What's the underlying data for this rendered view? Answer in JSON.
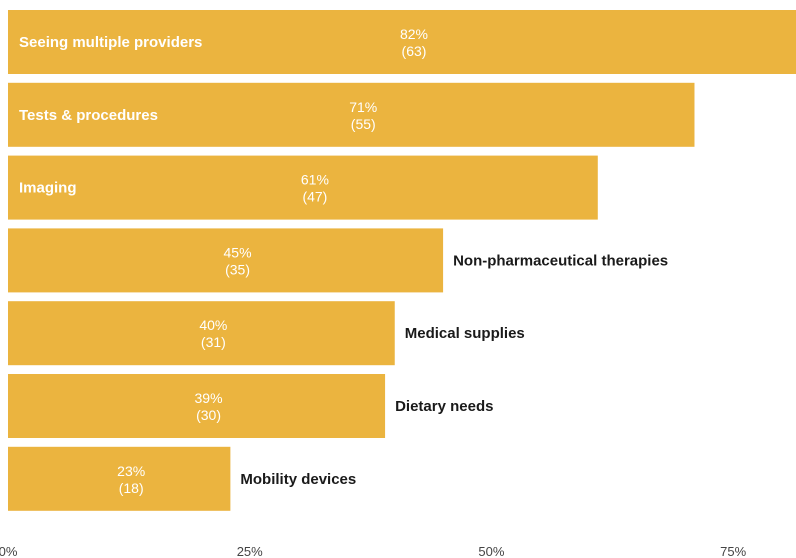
{
  "chart_data": {
    "type": "bar",
    "orientation": "horizontal",
    "categories": [
      "Seeing multiple providers",
      "Tests & procedures",
      "Imaging",
      "Non-pharmaceutical therapies",
      "Medical supplies",
      "Dietary needs",
      "Mobility devices"
    ],
    "values": [
      82,
      71,
      61,
      45,
      40,
      39,
      23
    ],
    "counts": [
      63,
      55,
      47,
      35,
      31,
      30,
      18
    ],
    "value_labels": [
      "82%",
      "71%",
      "61%",
      "45%",
      "40%",
      "39%",
      "23%"
    ],
    "count_labels": [
      "(63)",
      "(55)",
      "(47)",
      "(35)",
      "(31)",
      "(30)",
      "(18)"
    ],
    "x_ticks": [
      0,
      25,
      50,
      75
    ],
    "x_tick_labels": [
      "0%",
      "25%",
      "50%",
      "75%"
    ],
    "xlim": [
      0,
      81.5
    ],
    "grid": false,
    "legend": "none",
    "colors": {
      "bar": "#EBB43F",
      "label_inside": "#ffffff",
      "label_outside": "#1a1a1a"
    }
  }
}
